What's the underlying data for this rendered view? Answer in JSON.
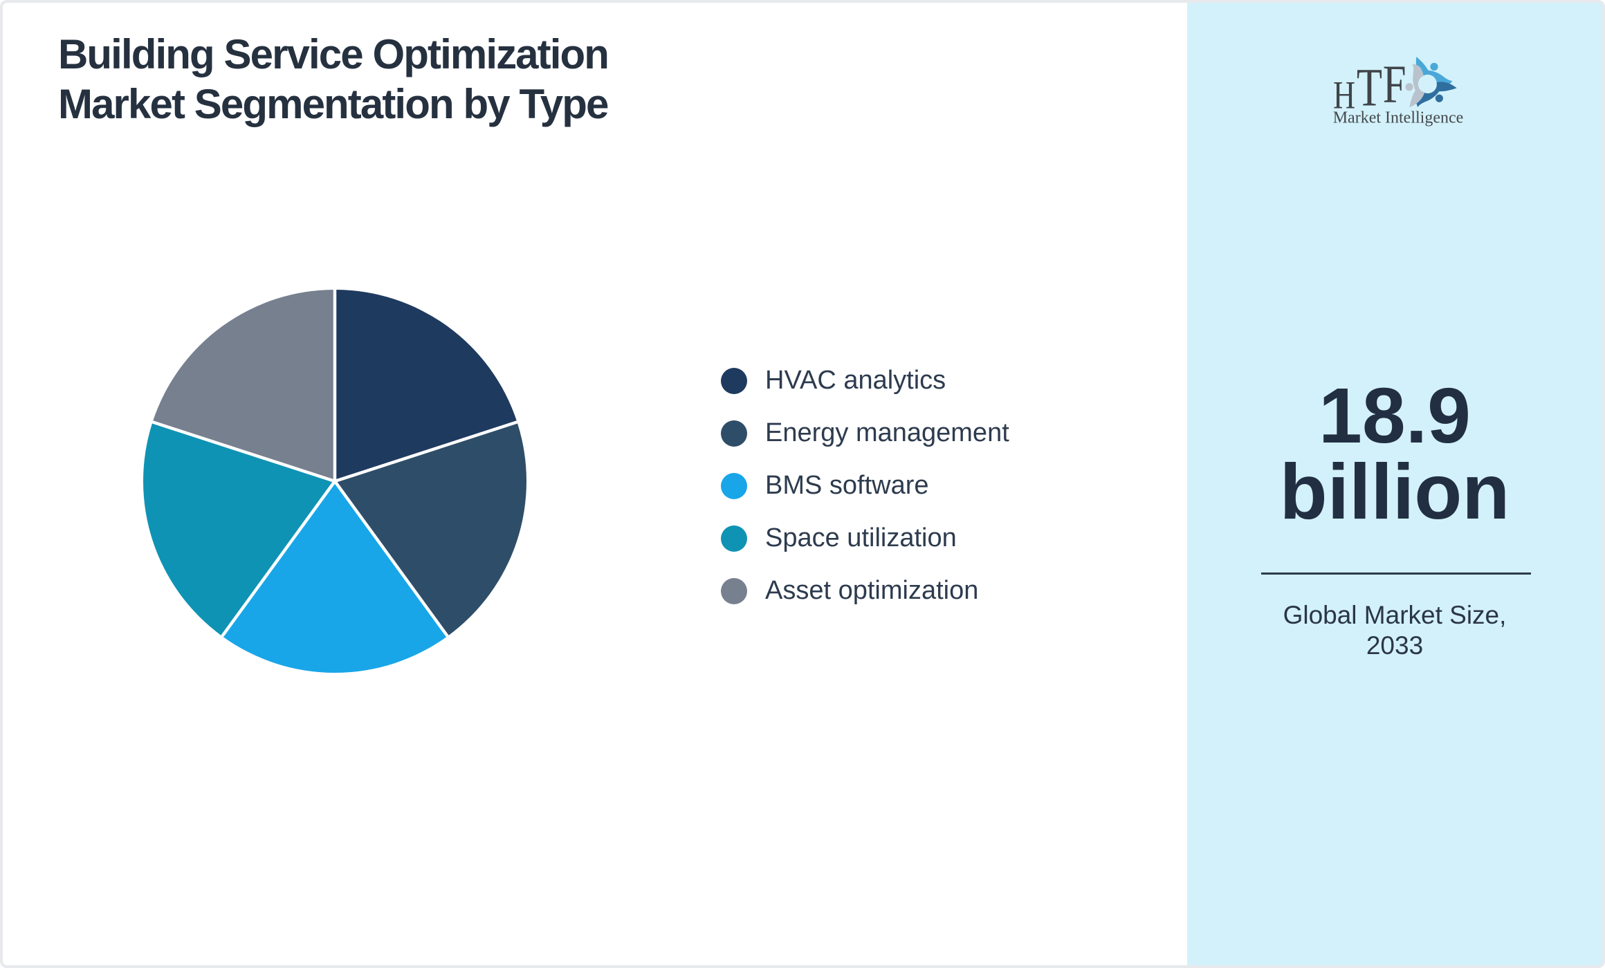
{
  "page": {
    "border_color": "#e7e9ec",
    "background": "#ffffff"
  },
  "title": {
    "lines": [
      "Building Service Optimization",
      "Market Segmentation by Type"
    ],
    "color": "#263140"
  },
  "chart_data": {
    "type": "pie",
    "title": "Building Service Optimization Market Segmentation by Type",
    "categories": [
      "HVAC analytics",
      "Energy management",
      "BMS software",
      "Space utilization",
      "Asset optimization"
    ],
    "values": [
      20,
      20,
      20,
      20,
      20
    ],
    "unit": "percent share (equal slices)",
    "colors": [
      "#1f3a5f",
      "#2e4d68",
      "#18a6e8",
      "#0f93b4",
      "#76808f"
    ],
    "start_angle_deg": 0,
    "direction": "clockwise",
    "legend_position": "right",
    "slice_labels_shown": false,
    "separator_color": "#ffffff"
  },
  "side_panel": {
    "background": "#d3f1fa",
    "logo": {
      "letters": [
        "H",
        "T",
        "F"
      ],
      "subtitle": "Market Intelligence",
      "text_color": "#3f4449",
      "figure_colors": [
        "#4aa8d8",
        "#2f6f9f",
        "#b9c3cd"
      ]
    },
    "market_size_value": "18.9",
    "market_size_unit": "billion",
    "caption_line1": "Global Market Size,",
    "caption_line2": "2033"
  }
}
